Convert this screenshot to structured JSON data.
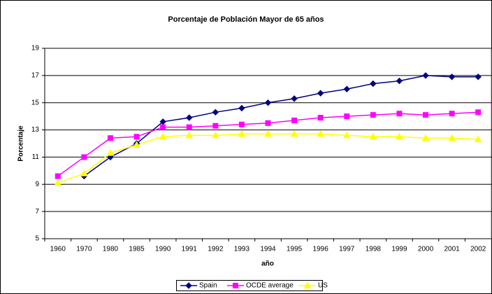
{
  "chart_data": {
    "type": "line",
    "title": "Porcentaje de Población Mayor de 65 años",
    "x_label": "año",
    "y_label": "Porcentaje",
    "categories": [
      "1960",
      "1970",
      "1980",
      "1985",
      "1990",
      "1991",
      "1992",
      "1993",
      "1994",
      "1995",
      "1996",
      "1997",
      "1998",
      "1999",
      "2000",
      "2001",
      "2002"
    ],
    "series": [
      {
        "name": "Spain",
        "color": "#000080",
        "marker": "diamond",
        "values": [
          null,
          9.6,
          11.0,
          12.0,
          13.6,
          13.9,
          14.3,
          14.6,
          15.0,
          15.3,
          15.7,
          16.0,
          16.4,
          16.6,
          17.0,
          16.9,
          16.9
        ]
      },
      {
        "name": "OCDE average",
        "color": "#ff00ff",
        "marker": "square",
        "values": [
          9.6,
          11.0,
          12.4,
          12.5,
          13.2,
          13.2,
          13.3,
          13.4,
          13.5,
          13.7,
          13.9,
          14.0,
          14.1,
          14.2,
          14.1,
          14.2,
          14.3
        ]
      },
      {
        "name": "US",
        "color": "#ffff00",
        "marker": "triangle",
        "values": [
          9.1,
          9.8,
          11.3,
          11.9,
          12.5,
          12.6,
          12.6,
          12.7,
          12.7,
          12.7,
          12.7,
          12.6,
          12.5,
          12.5,
          12.4,
          12.4,
          12.3
        ]
      }
    ],
    "ylim": [
      5,
      19
    ],
    "yticks": [
      5,
      7,
      9,
      11,
      13,
      15,
      17,
      19
    ],
    "grid": true,
    "legend": "bottom"
  }
}
